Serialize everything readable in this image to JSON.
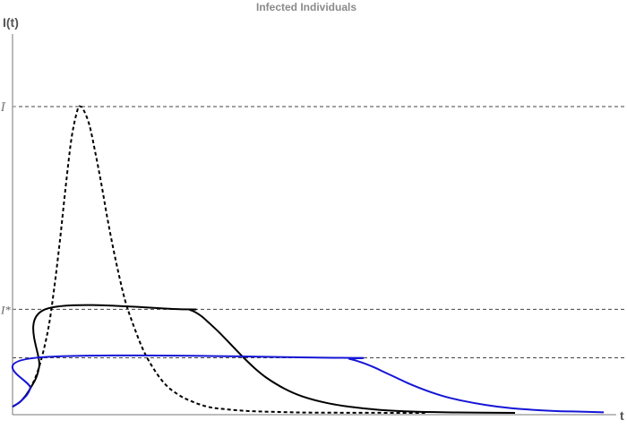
{
  "chart_data": {
    "type": "line",
    "title": "Infected Individuals",
    "xlabel": "t",
    "ylabel": "I(t)",
    "xlim": [
      0,
      100
    ],
    "ylim": [
      0,
      1.1
    ],
    "y_ticks": [
      {
        "label": "Ī",
        "value": 1.0
      },
      {
        "label": "I*",
        "value": 0.338
      }
    ],
    "reference_lines": [
      {
        "value": 1.0,
        "style": "dashed",
        "color": "#444444"
      },
      {
        "value": 0.338,
        "style": "dashed",
        "color": "#444444"
      },
      {
        "value": 0.18,
        "style": "dashed",
        "color": "#444444"
      }
    ],
    "series": [
      {
        "style": "dotted",
        "color": "#000000",
        "x": [
          0,
          1.5,
          3,
          4.5,
          6,
          7,
          8,
          9,
          10,
          11,
          11.5,
          12,
          13,
          14,
          15,
          16,
          17,
          18,
          19,
          20,
          22,
          24,
          26,
          28,
          30,
          33,
          36,
          40,
          45,
          50,
          56,
          62,
          70
        ],
        "y": [
          0.02,
          0.04,
          0.08,
          0.15,
          0.27,
          0.4,
          0.56,
          0.74,
          0.9,
          0.99,
          1.0,
          0.99,
          0.94,
          0.85,
          0.75,
          0.64,
          0.54,
          0.45,
          0.37,
          0.31,
          0.21,
          0.14,
          0.09,
          0.06,
          0.04,
          0.02,
          0.012,
          0.006,
          0.003,
          0.001,
          0.0005,
          0.0002,
          0.0
        ]
      },
      {
        "style": "solid",
        "color": "#000000",
        "x": [
          0,
          1.5,
          3,
          4.5,
          5.5,
          29,
          30,
          31,
          32,
          33,
          35,
          37,
          39,
          41,
          43,
          46,
          49,
          53,
          57,
          62,
          68,
          75,
          85
        ],
        "y": [
          0.02,
          0.04,
          0.08,
          0.15,
          0.338,
          0.338,
          0.336,
          0.328,
          0.315,
          0.298,
          0.262,
          0.222,
          0.182,
          0.145,
          0.114,
          0.079,
          0.054,
          0.033,
          0.02,
          0.01,
          0.004,
          0.0015,
          0.0
        ]
      },
      {
        "style": "solid",
        "color": "#1515d6",
        "x": [
          0,
          1.5,
          3,
          4,
          55,
          57,
          59,
          61,
          63,
          65,
          67,
          70,
          73,
          76,
          80,
          84,
          88,
          92,
          96,
          100
        ],
        "y": [
          0.02,
          0.04,
          0.08,
          0.18,
          0.18,
          0.176,
          0.165,
          0.15,
          0.132,
          0.114,
          0.096,
          0.073,
          0.054,
          0.04,
          0.026,
          0.016,
          0.01,
          0.006,
          0.004,
          0.002
        ]
      }
    ]
  }
}
